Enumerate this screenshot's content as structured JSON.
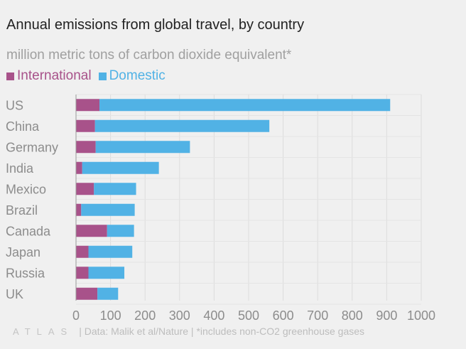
{
  "title": "Annual emissions from global travel, by country",
  "subtitle": "million metric tons of carbon dioxide equivalent*",
  "legend": [
    {
      "label": "International",
      "color": "#a8528a"
    },
    {
      "label": "Domestic",
      "color": "#51b2e5"
    }
  ],
  "footer": {
    "logo": "ATLAS",
    "source": "| Data: Malik et al/Nature | *includes non-CO2 greenhouse gases"
  },
  "chart_data": {
    "type": "bar",
    "orientation": "horizontal",
    "stacked": true,
    "categories": [
      "US",
      "China",
      "Germany",
      "India",
      "Mexico",
      "Brazil",
      "Canada",
      "Japan",
      "Russia",
      "UK"
    ],
    "series": [
      {
        "name": "International",
        "color": "#a8528a",
        "values": [
          68,
          55,
          57,
          18,
          52,
          15,
          90,
          36,
          36,
          62
        ]
      },
      {
        "name": "Domestic",
        "color": "#51b2e5",
        "values": [
          842,
          505,
          273,
          222,
          122,
          155,
          78,
          127,
          104,
          60
        ]
      }
    ],
    "xlim": [
      0,
      1000
    ],
    "xticks": [
      0,
      100,
      200,
      300,
      400,
      500,
      600,
      700,
      800,
      900,
      1000
    ],
    "grid": true,
    "xlabel": "",
    "ylabel": ""
  }
}
